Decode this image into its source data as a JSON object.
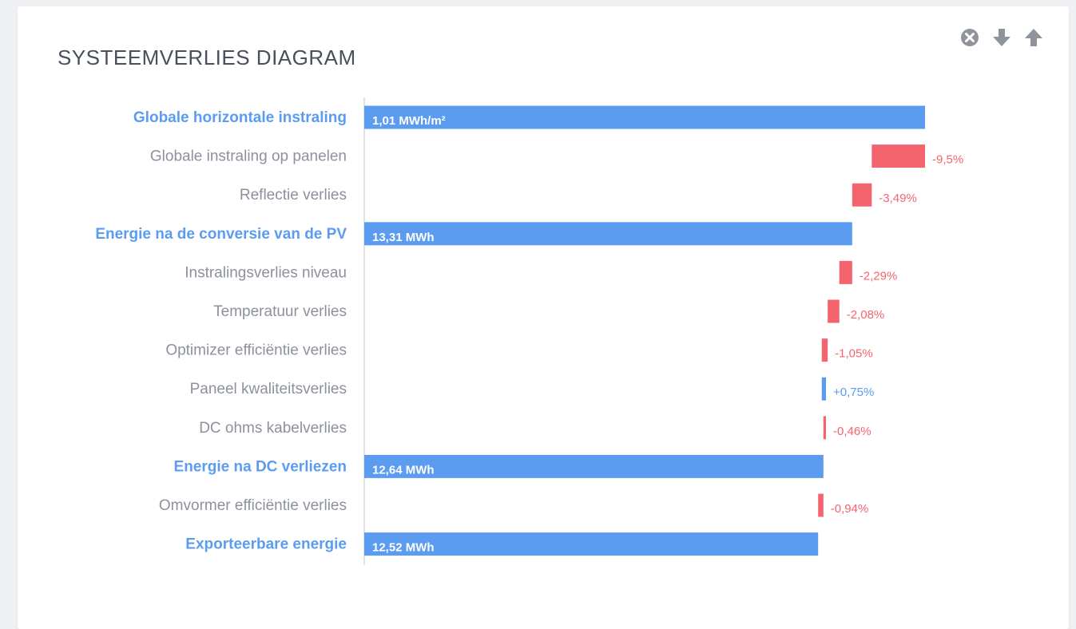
{
  "header": {
    "title": "SYSTEEMVERLIES DIAGRAM"
  },
  "actions": [
    {
      "name": "close-icon",
      "color": "#8e939c"
    },
    {
      "name": "arrow-down-icon",
      "color": "#8e939c"
    },
    {
      "name": "arrow-up-icon",
      "color": "#8e939c"
    }
  ],
  "colors": {
    "total": "#5b9cf1",
    "loss": "#f4646f",
    "gain": "#5b9cf1",
    "axis": "#dbe2ec"
  },
  "chart_data": {
    "type": "bar",
    "subtype": "waterfall",
    "orientation": "horizontal",
    "categories": [
      "Globale horizontale instraling",
      "Globale instraling op panelen",
      "Reflectie verlies",
      "Energie na de conversie van de PV",
      "Instralingsverlies niveau",
      "Temperatuur verlies",
      "Optimizer efficiëntie verlies",
      "Paneel kwaliteitsverlies",
      "DC ohms kabelverlies",
      "Energie na DC verliezen",
      "Omvormer efficiëntie verlies",
      "Exporteerbare energie"
    ],
    "kinds": [
      "total",
      "loss",
      "loss",
      "total",
      "loss",
      "loss",
      "loss",
      "gain",
      "loss",
      "total",
      "loss",
      "total"
    ],
    "labels": [
      "1,01 MWh/m²",
      "-9,5%",
      "-3,49%",
      "13,31 MWh",
      "-2,29%",
      "-2,08%",
      "-1,05%",
      "+0,75%",
      "-0,46%",
      "12,64 MWh",
      "-0,94%",
      "12,52 MWh"
    ],
    "values_pct": [
      100,
      -9.5,
      -3.49,
      null,
      -2.29,
      -2.08,
      -1.05,
      0.75,
      -0.46,
      null,
      -0.94,
      null
    ],
    "grid": false,
    "legend": "none"
  }
}
